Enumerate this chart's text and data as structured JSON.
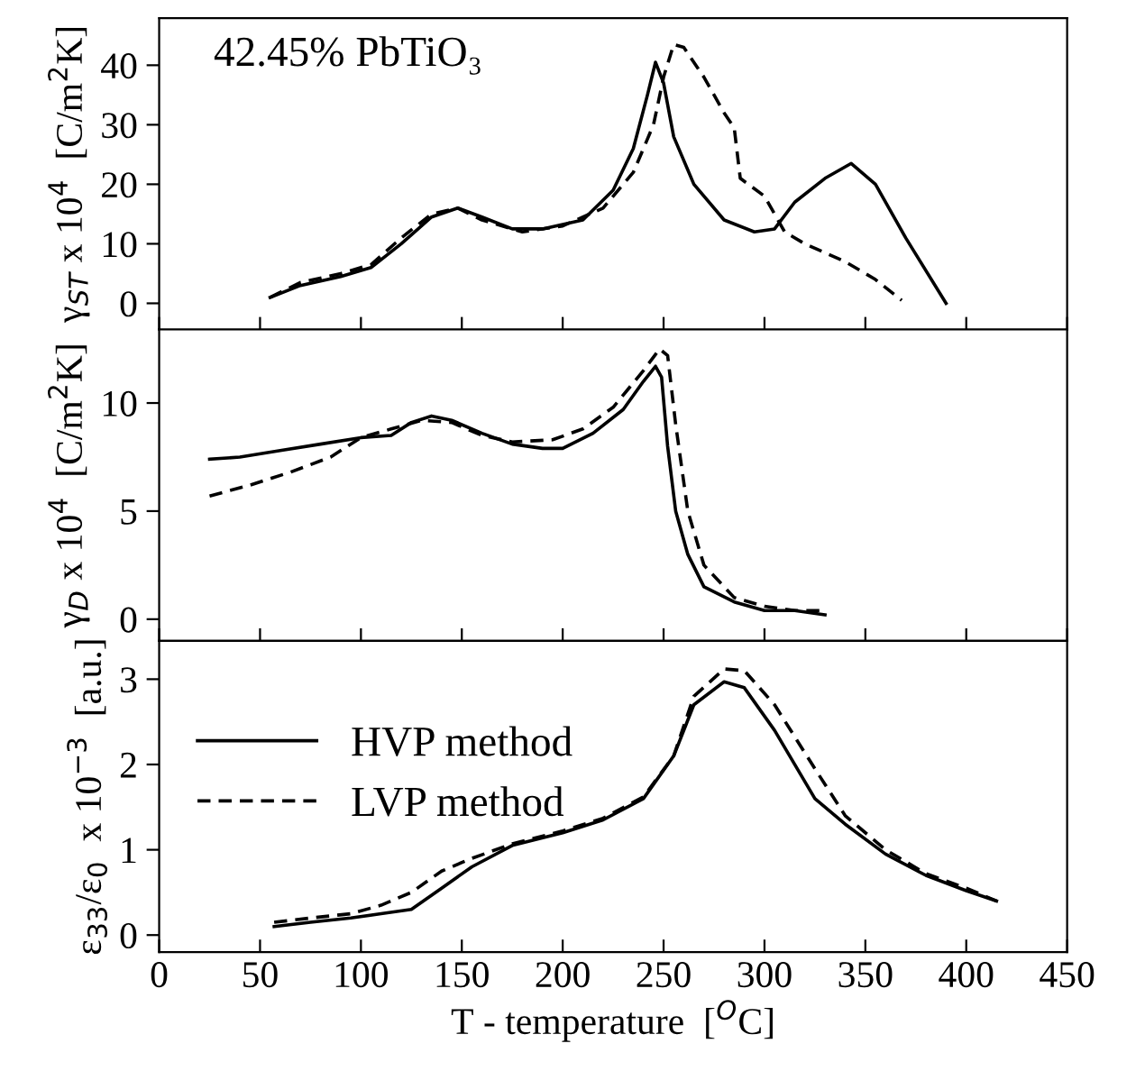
{
  "chart_data": [
    {
      "type": "line",
      "ylabel": "γ$_{ST}$ x 10$^{4}$  [C/m$^{2}$K]",
      "annotations": [
        "42.45% PbTiO₃"
      ],
      "xlim": [
        0,
        450
      ],
      "xticks": [
        0,
        50,
        100,
        150,
        200,
        250,
        300,
        350,
        400,
        450
      ],
      "ylim": [
        -4.4,
        47.9
      ],
      "yticks": [
        0,
        10,
        20,
        30,
        40
      ],
      "tick_labels": "y",
      "grid": false,
      "legend": false,
      "series": [
        {
          "color": "#000000",
          "line_style": "solid",
          "x": [
            55,
            70,
            90,
            105,
            120,
            135,
            148,
            160,
            175,
            190,
            210,
            225,
            235,
            242,
            246,
            250,
            255,
            265,
            280,
            295,
            305,
            315,
            330,
            343,
            355,
            370,
            390
          ],
          "values": [
            1,
            3,
            4.5,
            6,
            10,
            14.5,
            16,
            14.5,
            12.5,
            12.5,
            14,
            19,
            26,
            35,
            40.5,
            37,
            28,
            20,
            14,
            12,
            12.5,
            17,
            21,
            23.5,
            20,
            11,
            0
          ]
        },
        {
          "color": "#000000",
          "line_style": "dashed",
          "x": [
            55,
            70,
            90,
            105,
            120,
            135,
            148,
            160,
            180,
            200,
            220,
            235,
            245,
            250,
            255,
            260,
            270,
            280,
            285,
            288,
            300,
            310,
            320,
            340,
            355,
            368
          ],
          "values": [
            1,
            3.5,
            5,
            6.5,
            11,
            15,
            16,
            14,
            12,
            13,
            16,
            22,
            30,
            38,
            43.5,
            43,
            38,
            32,
            29.5,
            21,
            18,
            12,
            10,
            7,
            4,
            0.5
          ]
        }
      ]
    },
    {
      "type": "line",
      "ylabel": "γ$_{D}$ x 10$^{4}$  [C/m$^{2}$K]",
      "xlim": [
        0,
        450
      ],
      "xticks": [
        0,
        50,
        100,
        150,
        200,
        250,
        300,
        350,
        400,
        450
      ],
      "ylim": [
        -1,
        13.4
      ],
      "yticks": [
        0,
        5,
        10
      ],
      "tick_labels": "y",
      "grid": false,
      "legend": false,
      "series": [
        {
          "color": "#000000",
          "line_style": "solid",
          "x": [
            25,
            40,
            60,
            80,
            100,
            115,
            125,
            135,
            145,
            160,
            175,
            190,
            200,
            215,
            230,
            240,
            246,
            249,
            252,
            256,
            262,
            270,
            285,
            300,
            315,
            330
          ],
          "values": [
            7.4,
            7.5,
            7.8,
            8.1,
            8.4,
            8.5,
            9.1,
            9.4,
            9.2,
            8.6,
            8.1,
            7.9,
            7.9,
            8.6,
            9.7,
            11,
            11.7,
            11.2,
            8,
            5,
            3,
            1.5,
            0.8,
            0.4,
            0.4,
            0.2
          ]
        },
        {
          "color": "#000000",
          "line_style": "dashed",
          "x": [
            25,
            45,
            65,
            85,
            100,
            115,
            130,
            145,
            160,
            175,
            195,
            210,
            225,
            240,
            248,
            252,
            256,
            262,
            270,
            285,
            300,
            315,
            330
          ],
          "values": [
            5.7,
            6.2,
            6.8,
            7.5,
            8.4,
            8.8,
            9.2,
            9.1,
            8.5,
            8.2,
            8.3,
            8.8,
            9.8,
            11.5,
            12.5,
            12.2,
            9,
            5,
            2.5,
            1,
            0.6,
            0.4,
            0.4
          ]
        }
      ]
    },
    {
      "type": "line",
      "xlabel": "T - temperature  [$^{O}$C]",
      "ylabel": "ε$_{33}$/ε$_{0}$  x 10$^{−3}$  [a.u.]",
      "xlim": [
        0,
        450
      ],
      "xticks": [
        0,
        50,
        100,
        150,
        200,
        250,
        300,
        350,
        400,
        450
      ],
      "ylim": [
        -0.2,
        3.45
      ],
      "yticks": [
        0,
        1,
        2,
        3
      ],
      "grid": false,
      "legend": "top left",
      "series": [
        {
          "name": "HVP method",
          "color": "#000000",
          "line_style": "solid",
          "x": [
            57,
            75,
            95,
            110,
            125,
            140,
            155,
            175,
            200,
            220,
            240,
            255,
            265,
            280,
            290,
            305,
            325,
            340,
            360,
            380,
            400,
            415
          ],
          "values": [
            0.1,
            0.15,
            0.2,
            0.25,
            0.3,
            0.55,
            0.8,
            1.05,
            1.2,
            1.35,
            1.6,
            2.1,
            2.7,
            2.97,
            2.9,
            2.4,
            1.6,
            1.3,
            0.95,
            0.7,
            0.52,
            0.4
          ]
        },
        {
          "name": "LVP method",
          "color": "#000000",
          "line_style": "dashed",
          "x": [
            57,
            75,
            95,
            110,
            125,
            140,
            155,
            175,
            200,
            220,
            240,
            255,
            265,
            280,
            290,
            305,
            325,
            340,
            360,
            380,
            400,
            415
          ],
          "values": [
            0.15,
            0.2,
            0.25,
            0.35,
            0.5,
            0.75,
            0.9,
            1.07,
            1.22,
            1.37,
            1.62,
            2.1,
            2.8,
            3.12,
            3.1,
            2.7,
            1.95,
            1.4,
            1.0,
            0.72,
            0.55,
            0.4
          ]
        }
      ]
    }
  ]
}
